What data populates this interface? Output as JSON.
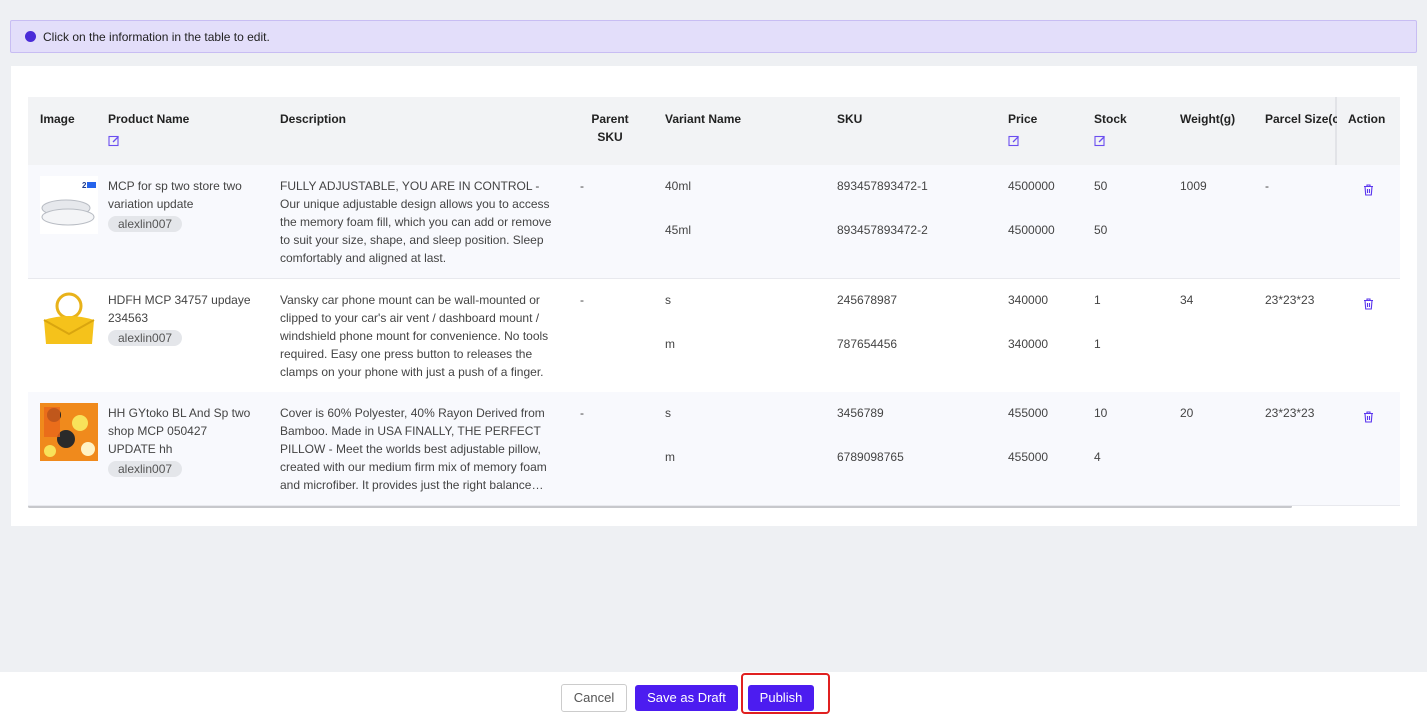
{
  "notice": "Click on the information in the table to edit.",
  "table": {
    "headers": [
      "Image",
      "Product Name",
      "Description",
      "Parent SKU",
      "Variant Name",
      "SKU",
      "Price",
      "Stock",
      "Weight(g)",
      "Parcel Size(c",
      "Action"
    ],
    "rows": [
      {
        "product_name": "MCP for sp two store two variation update",
        "store": "alexlin007",
        "description": "FULLY ADJUSTABLE, YOU ARE IN CONTROL - Our unique adjustable design allows you to access the memory foam fill, which you can add or remove to suit your size, shape, and sleep position. Sleep comfortably and aligned at last.",
        "parent_sku": "-",
        "variants": [
          {
            "name": "40ml",
            "sku": "893457893472-1",
            "price": "4500000",
            "stock": "50"
          },
          {
            "name": "45ml",
            "sku": "893457893472-2",
            "price": "4500000",
            "stock": "50"
          }
        ],
        "weight": "1009",
        "parcel_size": "-"
      },
      {
        "product_name": "HDFH MCP 34757 updaye 234563",
        "store": "alexlin007",
        "description": "Vansky car phone mount can be wall-mounted or clipped to your car's air vent / dashboard mount / windshield phone mount for convenience. No tools required. Easy one press button to releases the clamps on your phone with just a push of a finger.",
        "parent_sku": "-",
        "variants": [
          {
            "name": "s",
            "sku": "245678987",
            "price": "340000",
            "stock": "1"
          },
          {
            "name": "m",
            "sku": "787654456",
            "price": "340000",
            "stock": "1"
          }
        ],
        "weight": "34",
        "parcel_size": "23*23*23"
      },
      {
        "product_name": "HH GYtoko BL And Sp two shop MCP 050427 UPDATE hh",
        "store": "alexlin007",
        "description": "Cover is 60% Polyester, 40% Rayon Derived from Bamboo. Made in USA FINALLY, THE PERFECT PILLOW - Meet the worlds best adjustable pillow, created with our medium firm mix of memory foam and microfiber. It provides just the right balance…",
        "parent_sku": "-",
        "variants": [
          {
            "name": "s",
            "sku": "3456789",
            "price": "455000",
            "stock": "10"
          },
          {
            "name": "m",
            "sku": "6789098765",
            "price": "455000",
            "stock": "4"
          }
        ],
        "weight": "20",
        "parcel_size": "23*23*23"
      }
    ]
  },
  "buttons": {
    "cancel": "Cancel",
    "save_draft": "Save as Draft",
    "publish": "Publish"
  }
}
